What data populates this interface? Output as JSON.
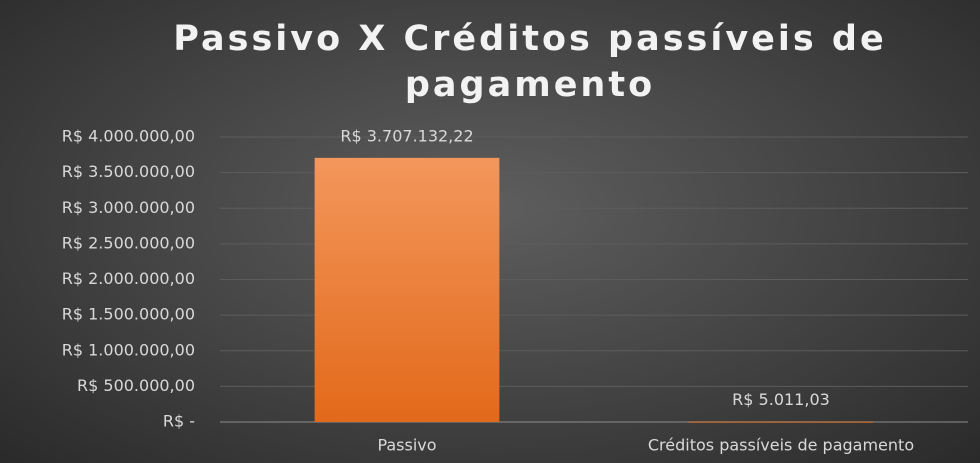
{
  "chart_data": {
    "type": "bar",
    "title": "Passivo X Créditos passíveis de pagamento",
    "categories": [
      "Passivo",
      "Créditos passíveis de pagamento"
    ],
    "values": [
      3707132.22,
      5011.03
    ],
    "value_labels": [
      "R$ 3.707.132,22",
      "R$ 5.011,03"
    ],
    "color": "#f07d2c",
    "ylim": [
      0,
      4000000
    ],
    "yticks": [
      {
        "value": 0,
        "label": "R$ -"
      },
      {
        "value": 500000,
        "label": "R$ 500.000,00"
      },
      {
        "value": 1000000,
        "label": "R$ 1.000.000,00"
      },
      {
        "value": 1500000,
        "label": "R$ 1.500.000,00"
      },
      {
        "value": 2000000,
        "label": "R$ 2.000.000,00"
      },
      {
        "value": 2500000,
        "label": "R$ 2.500.000,00"
      },
      {
        "value": 3000000,
        "label": "R$ 3.000.000,00"
      },
      {
        "value": 3500000,
        "label": "R$ 3.500.000,00"
      },
      {
        "value": 4000000,
        "label": "R$ 4.000.000,00"
      }
    ],
    "grid": true
  }
}
